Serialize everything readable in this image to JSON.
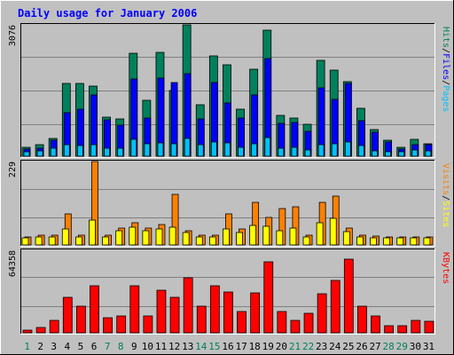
{
  "chart_data": {
    "title": "Daily usage for January 2006",
    "days": [
      "1",
      "2",
      "3",
      "4",
      "5",
      "6",
      "7",
      "8",
      "9",
      "10",
      "11",
      "12",
      "13",
      "14",
      "15",
      "16",
      "17",
      "18",
      "19",
      "20",
      "21",
      "22",
      "23",
      "24",
      "25",
      "26",
      "27",
      "28",
      "29",
      "30",
      "31"
    ],
    "weekend_days": [
      "1",
      "7",
      "8",
      "14",
      "15",
      "21",
      "22",
      "28",
      "29"
    ],
    "colors": {
      "title": "#0000ff",
      "hits": "#00805c",
      "files": "#0000ff",
      "pages": "#00c0ff",
      "visits": "#ff8000",
      "sites": "#ffff00",
      "kbytes": "#ff0000",
      "weekday_label": "#000000",
      "weekend_label": "#00805c",
      "plot_bg": "#c0c0c0",
      "grid": "#808080"
    },
    "panels": [
      {
        "type": "bar",
        "ymax_label": "3076",
        "ylim": [
          0,
          3076
        ],
        "legend": [
          "Pages",
          "Files",
          "Hits"
        ],
        "series": [
          {
            "name": "Hits",
            "values": [
              210,
              260,
              420,
              1710,
              1710,
              1650,
              910,
              880,
              2420,
              1300,
              2430,
              1540,
              3076,
              1200,
              2350,
              2150,
              1110,
              2030,
              2960,
              960,
              900,
              750,
              2250,
              2020,
              1750,
              1130,
              620,
              380,
              200,
              390,
              300
            ]
          },
          {
            "name": "Files",
            "values": [
              170,
              180,
              370,
              1020,
              1100,
              1440,
              860,
              720,
              1800,
              900,
              1830,
              1720,
              1940,
              870,
              1720,
              1240,
              890,
              1430,
              2280,
              770,
              800,
              580,
              1590,
              1340,
              1710,
              840,
              560,
              330,
              170,
              270,
              260
            ]
          },
          {
            "name": "Pages",
            "values": [
              110,
              120,
              190,
              270,
              250,
              260,
              190,
              180,
              400,
              290,
              320,
              300,
              420,
              270,
              340,
              320,
              210,
              300,
              430,
              190,
              200,
              150,
              280,
              290,
              330,
              250,
              120,
              110,
              100,
              150,
              130
            ]
          }
        ]
      },
      {
        "type": "bar",
        "ymax_label": "229",
        "ylim": [
          0,
          229
        ],
        "legend": [
          "Sites",
          "Visits"
        ],
        "series": [
          {
            "name": "Visits",
            "values": [
              23,
              27,
              27,
              86,
              27,
              229,
              27,
              46,
              60,
              46,
              56,
              140,
              38,
              27,
              27,
              85,
              43,
              117,
              75,
              100,
              105,
              27,
              116,
              134,
              46,
              27,
              24,
              23,
              22,
              23,
              23
            ]
          },
          {
            "name": "Sites",
            "values": [
              20,
              23,
              23,
              43,
              23,
              67,
              23,
              39,
              48,
              38,
              43,
              48,
              35,
              23,
              23,
              43,
              33,
              53,
              51,
              40,
              46,
              23,
              60,
              73,
              36,
              23,
              20,
              20,
              20,
              20,
              20
            ]
          }
        ]
      },
      {
        "type": "bar",
        "ymax_label": "64358",
        "ylim": [
          0,
          64358
        ],
        "legend": [
          "KBytes"
        ],
        "series": [
          {
            "name": "KBytes",
            "values": [
              2300,
              4300,
              9600,
              27900,
              21100,
              36500,
              11500,
              13400,
              36400,
              12900,
              33400,
              27900,
              43100,
              21100,
              36400,
              32100,
              16300,
              31200,
              55200,
              16300,
              9600,
              15300,
              30200,
              40500,
              57400,
              21100,
              13400,
              5600,
              5600,
              9600,
              9100
            ]
          }
        ]
      }
    ]
  }
}
